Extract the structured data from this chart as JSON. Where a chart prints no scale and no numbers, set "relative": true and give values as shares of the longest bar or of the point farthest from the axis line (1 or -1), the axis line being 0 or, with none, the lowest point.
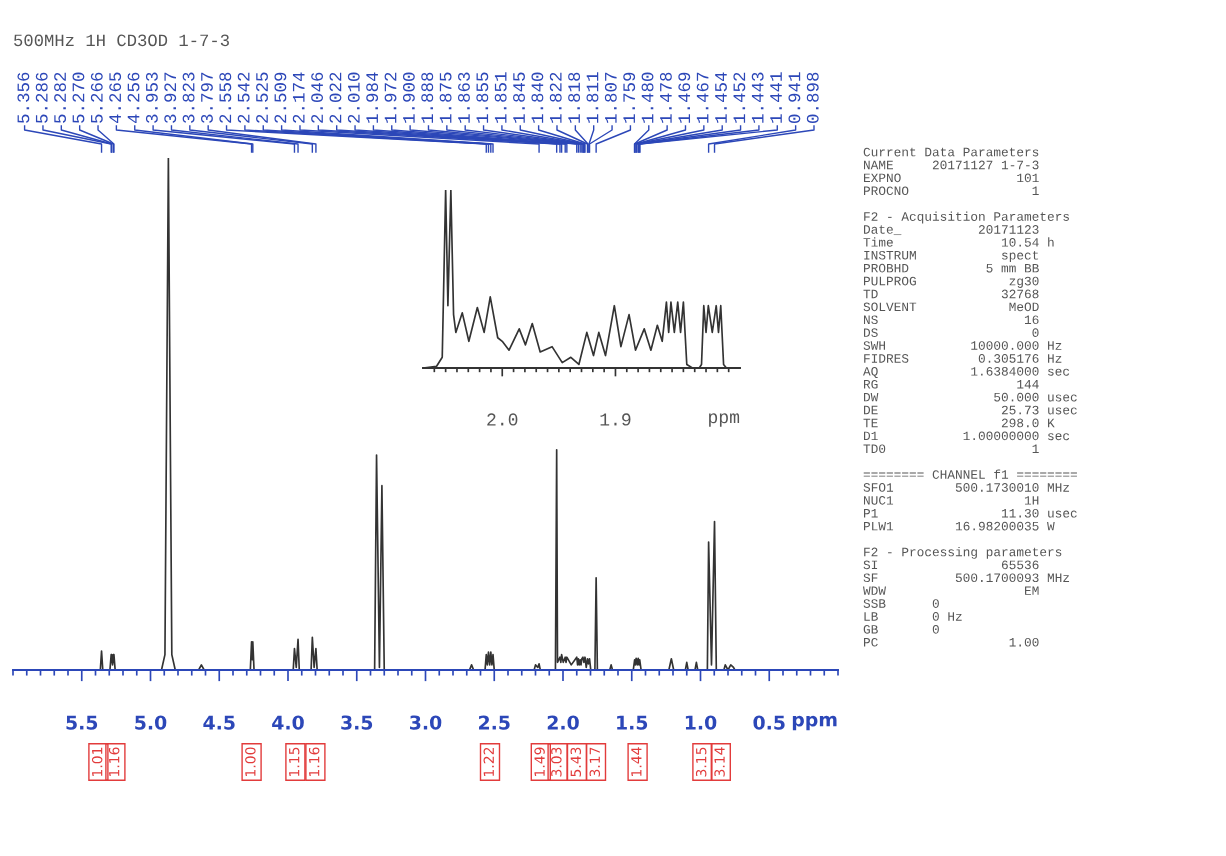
{
  "chart_data": [
    {
      "type": "line",
      "title": "500MHz 1H CD3OD 1-7-3",
      "xlabel": "ppm",
      "relative": true,
      "xlim": [
        6.0,
        0.0
      ],
      "xticks": [
        {
          "value": 6.0,
          "label": null
        },
        {
          "value": 5.9,
          "label": null
        },
        {
          "value": 5.8,
          "label": null
        },
        {
          "value": 5.7,
          "label": null
        },
        {
          "value": 5.6,
          "label": null
        },
        5.5,
        {
          "value": 5.4,
          "label": null
        },
        {
          "value": 5.3,
          "label": null
        },
        {
          "value": 5.2,
          "label": null
        },
        {
          "value": 5.1,
          "label": null
        },
        {
          "value": 5.0,
          "label": "5.0"
        },
        {
          "value": 4.9,
          "label": null
        },
        {
          "value": 4.8,
          "label": null
        },
        {
          "value": 4.7,
          "label": null
        },
        {
          "value": 4.6,
          "label": null
        },
        4.5,
        {
          "value": 4.4,
          "label": null
        },
        {
          "value": 4.3,
          "label": null
        },
        {
          "value": 4.2,
          "label": null
        },
        {
          "value": 4.1,
          "label": null
        },
        {
          "value": 4.0,
          "label": "4.0"
        },
        {
          "value": 3.9,
          "label": null
        },
        {
          "value": 3.8,
          "label": null
        },
        {
          "value": 3.7,
          "label": null
        },
        {
          "value": 3.6,
          "label": null
        },
        3.5,
        {
          "value": 3.4,
          "label": null
        },
        {
          "value": 3.3,
          "label": null
        },
        {
          "value": 3.2,
          "label": null
        },
        {
          "value": 3.1,
          "label": null
        },
        {
          "value": 3.0,
          "label": "3.0"
        },
        {
          "value": 2.9,
          "label": null
        },
        {
          "value": 2.8,
          "label": null
        },
        {
          "value": 2.7,
          "label": null
        },
        {
          "value": 2.6,
          "label": null
        },
        2.5,
        {
          "value": 2.4,
          "label": null
        },
        {
          "value": 2.3,
          "label": null
        },
        {
          "value": 2.2,
          "label": null
        },
        {
          "value": 2.1,
          "label": null
        },
        {
          "value": 2.0,
          "label": "2.0"
        },
        {
          "value": 1.9,
          "label": null
        },
        {
          "value": 1.8,
          "label": null
        },
        {
          "value": 1.7,
          "label": null
        },
        {
          "value": 1.6,
          "label": null
        },
        1.5,
        {
          "value": 1.4,
          "label": null
        },
        {
          "value": 1.3,
          "label": null
        },
        {
          "value": 1.2,
          "label": null
        },
        {
          "value": 1.1,
          "label": null
        },
        {
          "value": 1.0,
          "label": "1.0"
        },
        {
          "value": 0.9,
          "label": null
        },
        {
          "value": 0.8,
          "label": null
        },
        {
          "value": 0.7,
          "label": null
        },
        {
          "value": 0.6,
          "label": null
        },
        0.5,
        {
          "value": 0.4,
          "label": null
        },
        {
          "value": 0.3,
          "label": null
        },
        {
          "value": 0.2,
          "label": null
        },
        {
          "value": 0.1,
          "label": null
        },
        {
          "value": 0.0,
          "label": null
        }
      ],
      "series": [
        {
          "color": "#333333",
          "x": [
            6.0,
            5.365,
            5.356,
            5.347,
            5.295,
            5.286,
            5.284,
            5.282,
            5.276,
            5.27,
            5.268,
            5.266,
            5.257,
            4.92,
            4.895,
            4.87,
            4.845,
            4.82,
            4.65,
            4.63,
            4.61,
            4.274,
            4.265,
            4.26,
            4.256,
            4.247,
            3.962,
            3.953,
            3.94,
            3.927,
            3.918,
            3.832,
            3.823,
            3.81,
            3.797,
            3.788,
            3.37,
            3.356,
            3.335,
            3.317,
            3.3,
            2.68,
            2.665,
            2.65,
            2.567,
            2.558,
            2.55,
            2.542,
            2.533,
            2.525,
            2.517,
            2.509,
            2.5,
            2.21,
            2.2,
            2.183,
            2.174,
            2.165,
            2.055,
            2.046,
            2.04,
            2.022,
            2.016,
            2.01,
            1.998,
            1.984,
            1.978,
            1.972,
            1.94,
            1.9,
            1.894,
            1.888,
            1.882,
            1.875,
            1.869,
            1.863,
            1.855,
            1.848,
            1.84,
            1.831,
            1.822,
            1.815,
            1.807,
            1.798,
            1.768,
            1.759,
            1.75,
            1.66,
            1.65,
            1.64,
            1.489,
            1.479,
            1.474,
            1.468,
            1.46,
            1.453,
            1.447,
            1.442,
            1.432,
            1.23,
            1.212,
            1.195,
            1.11,
            1.1,
            1.09,
            1.04,
            1.03,
            1.02,
            0.95,
            0.941,
            0.92,
            0.898,
            0.885,
            0.83,
            0.82,
            0.8,
            0.78,
            0.76,
            0.75,
            0.0
          ],
          "values": [
            0,
            0,
            0.037,
            0,
            0,
            0.03,
            0.015,
            0.03,
            0.01,
            0.03,
            0.015,
            0.03,
            0,
            0,
            0.03,
            1,
            0.03,
            0,
            0,
            0.01,
            0,
            0,
            0.055,
            0.02,
            0.055,
            0,
            0,
            0.042,
            0.005,
            0.06,
            0,
            0,
            0.064,
            0.005,
            0.042,
            0,
            0,
            0.42,
            0.005,
            0.36,
            0,
            0,
            0.01,
            0,
            0,
            0.03,
            0.01,
            0.035,
            0.01,
            0.035,
            0.01,
            0.03,
            0,
            0,
            0.01,
            0.005,
            0.012,
            0,
            0,
            0.43,
            0.015,
            0.025,
            0.015,
            0.03,
            0.015,
            0.025,
            0.015,
            0.025,
            0.01,
            0.025,
            0.01,
            0.022,
            0.01,
            0.02,
            0.01,
            0.022,
            0.025,
            0.015,
            0.025,
            0.005,
            0.022,
            0.012,
            0.022,
            0,
            0,
            0.18,
            0,
            0,
            0.01,
            0,
            0,
            0.02,
            0.01,
            0.023,
            0.01,
            0.023,
            0.01,
            0.02,
            0,
            0,
            0.022,
            0,
            0,
            0.015,
            0,
            0,
            0.015,
            0,
            0,
            0.25,
            0.01,
            0.29,
            0,
            0,
            0.01,
            0,
            0.01,
            0.005,
            0,
            0
          ]
        }
      ],
      "annotations": [
        {
          "text": "5.356",
          "x": 5.356
        },
        {
          "text": "5.286",
          "x": 5.286
        },
        {
          "text": "5.282",
          "x": 5.282
        },
        {
          "text": "5.270",
          "x": 5.27
        },
        {
          "text": "5.266",
          "x": 5.266
        },
        {
          "text": "4.265",
          "x": 4.265
        },
        {
          "text": "4.256",
          "x": 4.256
        },
        {
          "text": "3.953",
          "x": 3.953
        },
        {
          "text": "3.927",
          "x": 3.927
        },
        {
          "text": "3.823",
          "x": 3.823
        },
        {
          "text": "3.797",
          "x": 3.797
        },
        {
          "text": "2.558",
          "x": 2.558
        },
        {
          "text": "2.542",
          "x": 2.542
        },
        {
          "text": "2.525",
          "x": 2.525
        },
        {
          "text": "2.509",
          "x": 2.509
        },
        {
          "text": "2.174",
          "x": 2.174
        },
        {
          "text": "2.046",
          "x": 2.046
        },
        {
          "text": "2.022",
          "x": 2.022
        },
        {
          "text": "2.010",
          "x": 2.01
        },
        {
          "text": "1.984",
          "x": 1.984
        },
        {
          "text": "1.972",
          "x": 1.972
        },
        {
          "text": "1.900",
          "x": 1.9
        },
        {
          "text": "1.888",
          "x": 1.888
        },
        {
          "text": "1.875",
          "x": 1.875
        },
        {
          "text": "1.863",
          "x": 1.863
        },
        {
          "text": "1.855",
          "x": 1.855
        },
        {
          "text": "1.851",
          "x": 1.851
        },
        {
          "text": "1.845",
          "x": 1.845
        },
        {
          "text": "1.840",
          "x": 1.84
        },
        {
          "text": "1.822",
          "x": 1.822
        },
        {
          "text": "1.818",
          "x": 1.818
        },
        {
          "text": "1.811",
          "x": 1.811
        },
        {
          "text": "1.807",
          "x": 1.807
        },
        {
          "text": "1.759",
          "x": 1.759
        },
        {
          "text": "1.480",
          "x": 1.48
        },
        {
          "text": "1.478",
          "x": 1.478
        },
        {
          "text": "1.469",
          "x": 1.469
        },
        {
          "text": "1.467",
          "x": 1.467
        },
        {
          "text": "1.454",
          "x": 1.454
        },
        {
          "text": "1.452",
          "x": 1.452
        },
        {
          "text": "1.443",
          "x": 1.443
        },
        {
          "text": "1.441",
          "x": 1.441
        },
        {
          "text": "0.941",
          "x": 0.941
        },
        {
          "text": "0.898",
          "x": 0.898
        },
        "1.01",
        "1.16",
        "1.00",
        "1.15",
        "1.16",
        "1.22",
        "1.49",
        "3.03",
        "5.43",
        "3.17",
        "1.44",
        "3.15",
        "3.14"
      ]
    },
    {
      "type": "line",
      "xlabel": "ppm",
      "relative": true,
      "xlim": [
        2.07,
        1.79
      ],
      "xticks": [
        {
          "value": 2.06,
          "label": null
        },
        {
          "value": 2.05,
          "label": null
        },
        {
          "value": 2.04,
          "label": null
        },
        {
          "value": 2.03,
          "label": null
        },
        {
          "value": 2.02,
          "label": null
        },
        {
          "value": 2.01,
          "label": null
        },
        {
          "value": 2.0,
          "label": "2.0"
        },
        {
          "value": 1.99,
          "label": null
        },
        {
          "value": 1.98,
          "label": null
        },
        {
          "value": 1.97,
          "label": null
        },
        {
          "value": 1.96,
          "label": null
        },
        {
          "value": 1.95,
          "label": null
        },
        {
          "value": 1.94,
          "label": null
        },
        {
          "value": 1.93,
          "label": null
        },
        {
          "value": 1.92,
          "label": null
        },
        {
          "value": 1.91,
          "label": null
        },
        1.9,
        {
          "value": 1.89,
          "label": null
        },
        {
          "value": 1.88,
          "label": null
        },
        {
          "value": 1.87,
          "label": null
        },
        {
          "value": 1.86,
          "label": null
        },
        {
          "value": 1.85,
          "label": null
        },
        {
          "value": 1.84,
          "label": null
        },
        {
          "value": 1.83,
          "label": null
        },
        {
          "value": 1.82,
          "label": null
        },
        {
          "value": 1.81,
          "label": null
        },
        {
          "value": 1.8,
          "label": null
        }
      ],
      "series": [
        {
          "color": "#333333",
          "x": [
            2.07,
            2.058,
            2.053,
            2.05,
            2.048,
            2.0454,
            2.043,
            2.041,
            2.0353,
            2.0295,
            2.022,
            2.016,
            2.0106,
            2.004,
            2.0,
            1.994,
            1.985,
            1.9795,
            1.9735,
            1.9665,
            1.956,
            1.947,
            1.9394,
            1.9323,
            1.9253,
            1.9194,
            1.9147,
            1.9088,
            1.901,
            1.8952,
            1.888,
            1.8823,
            1.8746,
            1.8687,
            1.863,
            1.8587,
            1.855,
            1.853,
            1.851,
            1.848,
            1.845,
            1.8425,
            1.84,
            1.837,
            1.832,
            1.826,
            1.824,
            1.822,
            1.82,
            1.818,
            1.8145,
            1.811,
            1.809,
            1.807,
            1.8045,
            1.802,
            1.79
          ],
          "values": [
            0,
            0.01,
            0.06,
            1,
            0.35,
            1,
            0.3,
            0.2,
            0.31,
            0.15,
            0.34,
            0.2,
            0.4,
            0.17,
            0.15,
            0.1,
            0.22,
            0.13,
            0.25,
            0.09,
            0.12,
            0.03,
            0.06,
            0.02,
            0.2,
            0.07,
            0.2,
            0.07,
            0.35,
            0.12,
            0.3,
            0.1,
            0.22,
            0.1,
            0.24,
            0.15,
            0.37,
            0.2,
            0.37,
            0.2,
            0.37,
            0.2,
            0.37,
            0.02,
            0,
            0,
            0.02,
            0.35,
            0.2,
            0.35,
            0.2,
            0.35,
            0.2,
            0.35,
            0.02,
            0,
            0
          ]
        }
      ]
    },
    {
      "type": "other",
      "annotations": [
        "Current Data Parameters",
        "NAME     20171127 1-7-3",
        "EXPNO               101",
        "PROCNO                1"
      ]
    },
    {
      "type": "other",
      "annotations": [
        "F2 - Acquisition Parameters",
        "Date_          20171123",
        "Time              10.54 h",
        "INSTRUM           spect",
        "PROBHD          5 mm BB",
        "PULPROG            zg30",
        "TD                32768",
        "SOLVENT            MeOD",
        "NS                   16",
        "DS                    0",
        "SWH           10000.000 Hz",
        "FIDRES         0.305176 Hz",
        "AQ            1.6384000 sec",
        "RG                  144",
        "DW               50.000 usec",
        "DE                25.73 usec",
        "TE                298.0 K",
        "D1           1.00000000 sec",
        "TD0                   1"
      ]
    },
    {
      "type": "other",
      "annotations": [
        "======== CHANNEL f1 ========",
        "SFO1        500.1730010 MHz",
        "NUC1                 1H",
        "P1                11.30 usec",
        "PLW1        16.98200035 W"
      ]
    },
    {
      "type": "other",
      "annotations": [
        "F2 - Processing parameters",
        "SI                65536",
        "SF          500.1700093 MHz",
        "WDW                  EM",
        "SSB      0",
        "LB       0 Hz",
        "GB       0",
        "PC                 1.00"
      ]
    }
  ]
}
